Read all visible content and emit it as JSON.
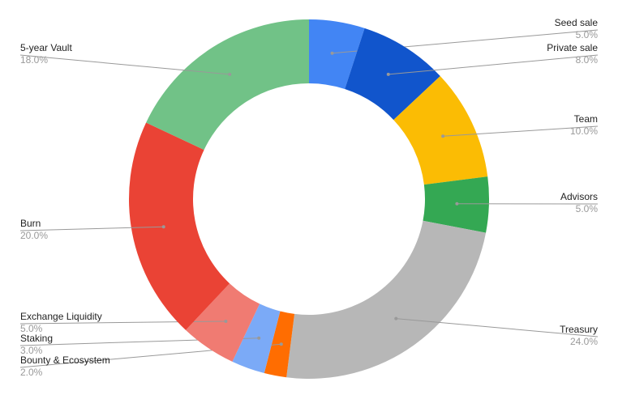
{
  "chart_data": {
    "type": "donut",
    "categories": [
      "Seed sale",
      "Private sale",
      "Team",
      "Advisors",
      "Treasury",
      "Bounty & Ecosystem",
      "Staking",
      "Exchange Liquidity",
      "Burn",
      "5-year Vault"
    ],
    "values": [
      5,
      8,
      10,
      5,
      24,
      2,
      3,
      5,
      20,
      18
    ],
    "value_labels": [
      "5.0%",
      "8.0%",
      "10.0%",
      "5.0%",
      "24.0%",
      "2.0%",
      "3.0%",
      "5.0%",
      "20.0%",
      "18.0%"
    ],
    "colors": [
      "#4285f4",
      "#1155cc",
      "#fbbc04",
      "#34a853",
      "#b7b7b7",
      "#ff6d01",
      "#7baaf7",
      "#f07b72",
      "#ea4335",
      "#71c287"
    ]
  }
}
